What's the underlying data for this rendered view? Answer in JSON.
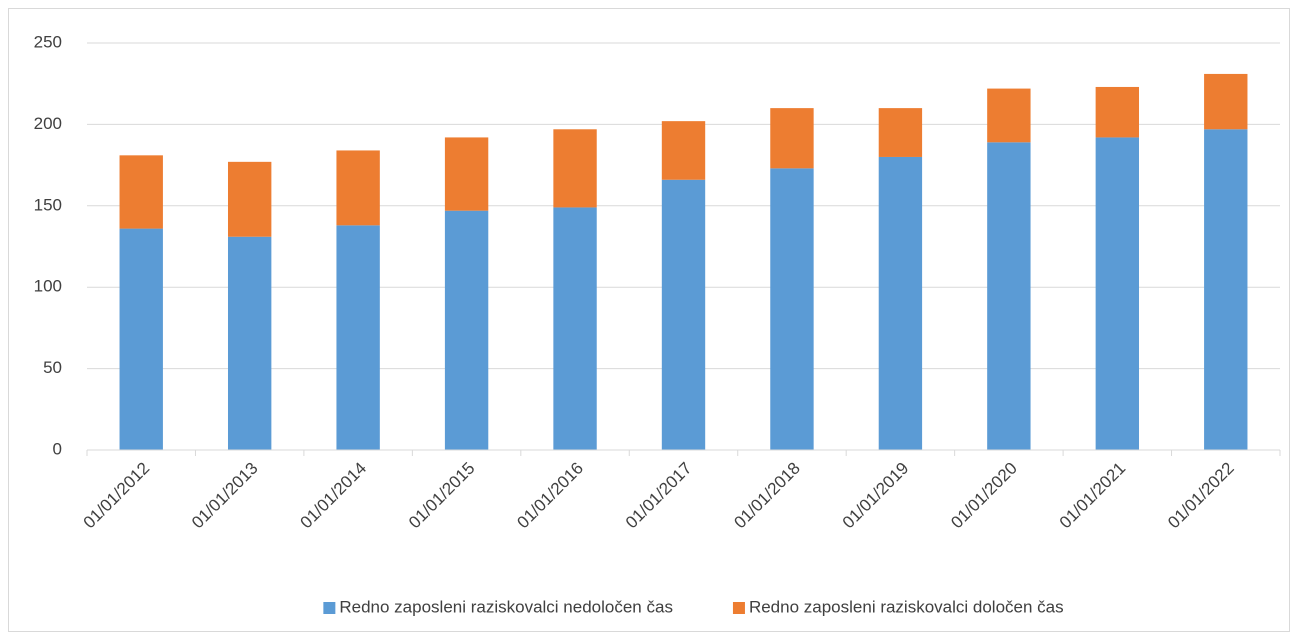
{
  "chart_data": {
    "type": "stacked_bar",
    "categories": [
      "01/01/2012",
      "01/01/2013",
      "01/01/2014",
      "01/01/2015",
      "01/01/2016",
      "01/01/2017",
      "01/01/2018",
      "01/01/2019",
      "01/01/2020",
      "01/01/2021",
      "01/01/2022"
    ],
    "series": [
      {
        "name": "Redno zaposleni raziskovalci nedoločen čas",
        "color": "#5b9bd5",
        "values": [
          136,
          131,
          138,
          147,
          149,
          166,
          173,
          180,
          189,
          192,
          197
        ]
      },
      {
        "name": "Redno zaposleni raziskovalci določen čas",
        "color": "#ed7d31",
        "values": [
          45,
          46,
          46,
          45,
          48,
          36,
          37,
          30,
          33,
          31,
          34
        ]
      }
    ],
    "ylim": [
      0,
      250
    ],
    "yticks": [
      0,
      50,
      100,
      150,
      200,
      250
    ],
    "grid": true,
    "legend": "bottom"
  }
}
